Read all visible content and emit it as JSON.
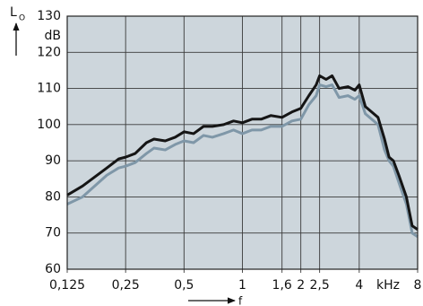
{
  "chart_data": {
    "type": "line",
    "y_label": "L",
    "y_label_subscript": "O",
    "y_unit": "dB",
    "x_label": "f",
    "x_unit": "kHz",
    "log_x": true,
    "grid": true,
    "plot_background": "#cdd6dc",
    "xlim": [
      0.125,
      8
    ],
    "ylim": [
      60,
      130
    ],
    "xticks": [
      {
        "value": 0.125,
        "label": "0,125"
      },
      {
        "value": 0.25,
        "label": "0,25"
      },
      {
        "value": 0.5,
        "label": "0,5"
      },
      1,
      {
        "value": 1.6,
        "label": "1,6"
      },
      2,
      {
        "value": 2.5,
        "label": "2,5"
      },
      4,
      8
    ],
    "yticks": [
      60,
      70,
      80,
      90,
      100,
      110,
      120,
      130
    ],
    "x": [
      0.125,
      0.15,
      0.2,
      0.23,
      0.25,
      0.28,
      0.32,
      0.35,
      0.4,
      0.45,
      0.5,
      0.56,
      0.63,
      0.7,
      0.8,
      0.9,
      1.0,
      1.12,
      1.25,
      1.4,
      1.6,
      1.8,
      2.0,
      2.2,
      2.4,
      2.5,
      2.7,
      2.9,
      3.15,
      3.5,
      3.8,
      4.0,
      4.3,
      5.0,
      5.4,
      5.7,
      6.0,
      6.4,
      7.0,
      7.5,
      8
    ],
    "series": [
      {
        "color": "#151515",
        "values": [
          80.5,
          83,
          88,
          90.5,
          91,
          92,
          95,
          96,
          95.5,
          96.5,
          98,
          97.5,
          99.5,
          99.5,
          100,
          101,
          100.5,
          101.5,
          101.5,
          102.5,
          102,
          103.5,
          104.5,
          108,
          111,
          113.5,
          112.5,
          113.5,
          110,
          110.5,
          109.5,
          111,
          105,
          102,
          96,
          91,
          90,
          86,
          80,
          72,
          71
        ]
      },
      {
        "color": "#7f97a8",
        "values": [
          78,
          80,
          86,
          88,
          88.5,
          89.5,
          92,
          93.5,
          93,
          94.5,
          95.5,
          95,
          97,
          96.5,
          97.5,
          98.5,
          97.5,
          98.5,
          98.5,
          99.5,
          99.5,
          101,
          101.5,
          105.5,
          108,
          111,
          110.5,
          111,
          107.5,
          108,
          107,
          108,
          103,
          100,
          93,
          90,
          88.5,
          84,
          78,
          70,
          69
        ]
      }
    ]
  }
}
